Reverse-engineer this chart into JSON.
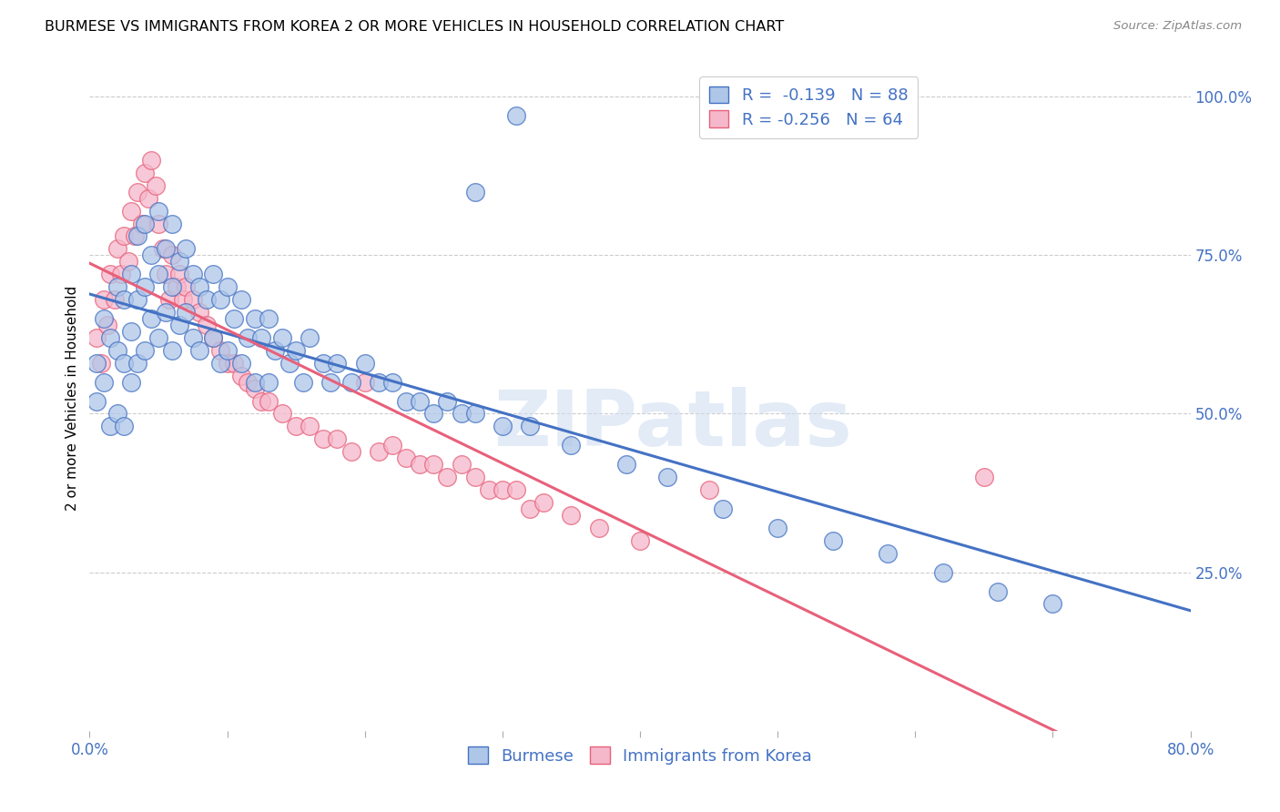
{
  "title": "BURMESE VS IMMIGRANTS FROM KOREA 2 OR MORE VEHICLES IN HOUSEHOLD CORRELATION CHART",
  "source": "Source: ZipAtlas.com",
  "ylabel": "2 or more Vehicles in Household",
  "x_min": 0.0,
  "x_max": 0.8,
  "y_min": 0.0,
  "y_max": 1.05,
  "y_tick_labels_right": [
    "25.0%",
    "50.0%",
    "75.0%",
    "100.0%"
  ],
  "y_tick_positions_right": [
    0.25,
    0.5,
    0.75,
    1.0
  ],
  "burmese_color": "#aec6e8",
  "korea_color": "#f5b8cb",
  "burmese_line_color": "#4472c4",
  "korea_line_color": "#e8607a",
  "burmese_R": -0.139,
  "burmese_N": 88,
  "korea_R": -0.256,
  "korea_N": 64,
  "legend_label_burmese": "Burmese",
  "legend_label_korea": "Immigrants from Korea",
  "watermark": "ZIPatlas",
  "background_color": "#ffffff",
  "grid_color": "#cccccc",
  "burmese_x": [
    0.005,
    0.005,
    0.01,
    0.01,
    0.015,
    0.015,
    0.02,
    0.02,
    0.02,
    0.025,
    0.025,
    0.025,
    0.03,
    0.03,
    0.03,
    0.035,
    0.035,
    0.035,
    0.04,
    0.04,
    0.04,
    0.045,
    0.045,
    0.05,
    0.05,
    0.05,
    0.055,
    0.055,
    0.06,
    0.06,
    0.06,
    0.065,
    0.065,
    0.07,
    0.07,
    0.075,
    0.075,
    0.08,
    0.08,
    0.085,
    0.09,
    0.09,
    0.095,
    0.095,
    0.1,
    0.1,
    0.105,
    0.11,
    0.11,
    0.115,
    0.12,
    0.12,
    0.125,
    0.13,
    0.13,
    0.135,
    0.14,
    0.145,
    0.15,
    0.155,
    0.16,
    0.17,
    0.175,
    0.18,
    0.19,
    0.2,
    0.21,
    0.22,
    0.23,
    0.24,
    0.25,
    0.26,
    0.27,
    0.28,
    0.3,
    0.32,
    0.35,
    0.39,
    0.42,
    0.46,
    0.5,
    0.54,
    0.58,
    0.62,
    0.66,
    0.7,
    0.28,
    0.31
  ],
  "burmese_y": [
    0.58,
    0.52,
    0.65,
    0.55,
    0.62,
    0.48,
    0.7,
    0.6,
    0.5,
    0.68,
    0.58,
    0.48,
    0.72,
    0.63,
    0.55,
    0.78,
    0.68,
    0.58,
    0.8,
    0.7,
    0.6,
    0.75,
    0.65,
    0.82,
    0.72,
    0.62,
    0.76,
    0.66,
    0.8,
    0.7,
    0.6,
    0.74,
    0.64,
    0.76,
    0.66,
    0.72,
    0.62,
    0.7,
    0.6,
    0.68,
    0.72,
    0.62,
    0.68,
    0.58,
    0.7,
    0.6,
    0.65,
    0.68,
    0.58,
    0.62,
    0.65,
    0.55,
    0.62,
    0.65,
    0.55,
    0.6,
    0.62,
    0.58,
    0.6,
    0.55,
    0.62,
    0.58,
    0.55,
    0.58,
    0.55,
    0.58,
    0.55,
    0.55,
    0.52,
    0.52,
    0.5,
    0.52,
    0.5,
    0.5,
    0.48,
    0.48,
    0.45,
    0.42,
    0.4,
    0.35,
    0.32,
    0.3,
    0.28,
    0.25,
    0.22,
    0.2,
    0.85,
    0.97
  ],
  "korea_x": [
    0.005,
    0.008,
    0.01,
    0.013,
    0.015,
    0.018,
    0.02,
    0.023,
    0.025,
    0.028,
    0.03,
    0.033,
    0.035,
    0.038,
    0.04,
    0.043,
    0.045,
    0.048,
    0.05,
    0.053,
    0.055,
    0.058,
    0.06,
    0.063,
    0.065,
    0.068,
    0.07,
    0.075,
    0.08,
    0.085,
    0.09,
    0.095,
    0.1,
    0.105,
    0.11,
    0.115,
    0.12,
    0.125,
    0.13,
    0.14,
    0.15,
    0.16,
    0.17,
    0.18,
    0.19,
    0.2,
    0.21,
    0.22,
    0.23,
    0.24,
    0.25,
    0.26,
    0.27,
    0.28,
    0.29,
    0.3,
    0.31,
    0.32,
    0.33,
    0.35,
    0.37,
    0.4,
    0.45,
    0.65
  ],
  "korea_y": [
    0.62,
    0.58,
    0.68,
    0.64,
    0.72,
    0.68,
    0.76,
    0.72,
    0.78,
    0.74,
    0.82,
    0.78,
    0.85,
    0.8,
    0.88,
    0.84,
    0.9,
    0.86,
    0.8,
    0.76,
    0.72,
    0.68,
    0.75,
    0.7,
    0.72,
    0.68,
    0.7,
    0.68,
    0.66,
    0.64,
    0.62,
    0.6,
    0.58,
    0.58,
    0.56,
    0.55,
    0.54,
    0.52,
    0.52,
    0.5,
    0.48,
    0.48,
    0.46,
    0.46,
    0.44,
    0.55,
    0.44,
    0.45,
    0.43,
    0.42,
    0.42,
    0.4,
    0.42,
    0.4,
    0.38,
    0.38,
    0.38,
    0.35,
    0.36,
    0.34,
    0.32,
    0.3,
    0.38,
    0.4
  ]
}
